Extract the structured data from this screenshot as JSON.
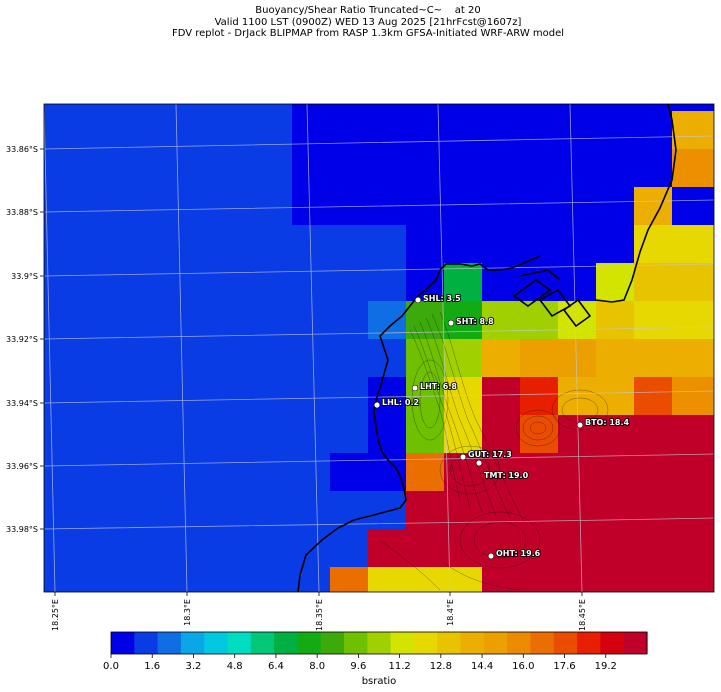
{
  "title": {
    "line1": "Buoyancy/Shear Ratio Truncated~C~    at 20",
    "line2": "Valid 1100 LST (0900Z) WED 13 Aug 2025 [21hrFcst@1607z]",
    "line3": "FDV replot - DrJack BLIPMAP from RASP 1.3km GFSA-Initiated WRF-ARW model"
  },
  "lat_labels": [
    "33.86°S",
    "33.88°S",
    "33.9°S",
    "33.92°S",
    "33.94°S",
    "33.96°S",
    "33.98°S"
  ],
  "lon_labels": [
    "18.25°E",
    "18.3°E",
    "18.35°E",
    "18.4°E",
    "18.45°E"
  ],
  "stations": [
    {
      "name": "SHL",
      "value": "3.5",
      "label": "SHL: 3.5"
    },
    {
      "name": "SHT",
      "value": "8.8",
      "label": "SHT: 8.8"
    },
    {
      "name": "LHT",
      "value": "6.8",
      "label": "LHT: 6.8"
    },
    {
      "name": "LHL",
      "value": "0.2",
      "label": "LHL: 0.2"
    },
    {
      "name": "BTO",
      "value": "18.4",
      "label": "BTO: 18.4"
    },
    {
      "name": "GUT",
      "value": "17.3",
      "label": "GUT: 17.3"
    },
    {
      "name": "TMT",
      "value": "19.0",
      "label": "TMT: 19.0"
    },
    {
      "name": "OHT",
      "value": "19.6",
      "label": "OHT: 19.6"
    }
  ],
  "colorbar": {
    "label": "bsratio",
    "min": 0.0,
    "max": 20.8,
    "ticks": [
      "0.0",
      "1.6",
      "3.2",
      "4.8",
      "6.4",
      "8.0",
      "9.6",
      "11.2",
      "12.8",
      "14.4",
      "16.0",
      "17.6",
      "19.2"
    ],
    "colors": [
      "#0000e8",
      "#0a3ce6",
      "#0f6ee4",
      "#0aa6e6",
      "#00c8e0",
      "#00dcc0",
      "#00c878",
      "#00b040",
      "#14aa14",
      "#3caa0a",
      "#6ec000",
      "#a0d000",
      "#d2e400",
      "#e6d800",
      "#e8c400",
      "#ecae00",
      "#eca000",
      "#ec8a00",
      "#ea6e00",
      "#ea4c00",
      "#e81e00",
      "#d40010",
      "#c00028"
    ]
  },
  "colors": {
    "background_high": "#0000e8",
    "background_low": "#0a3ce6",
    "max_red": "#c00028",
    "coastline": "#000000"
  }
}
